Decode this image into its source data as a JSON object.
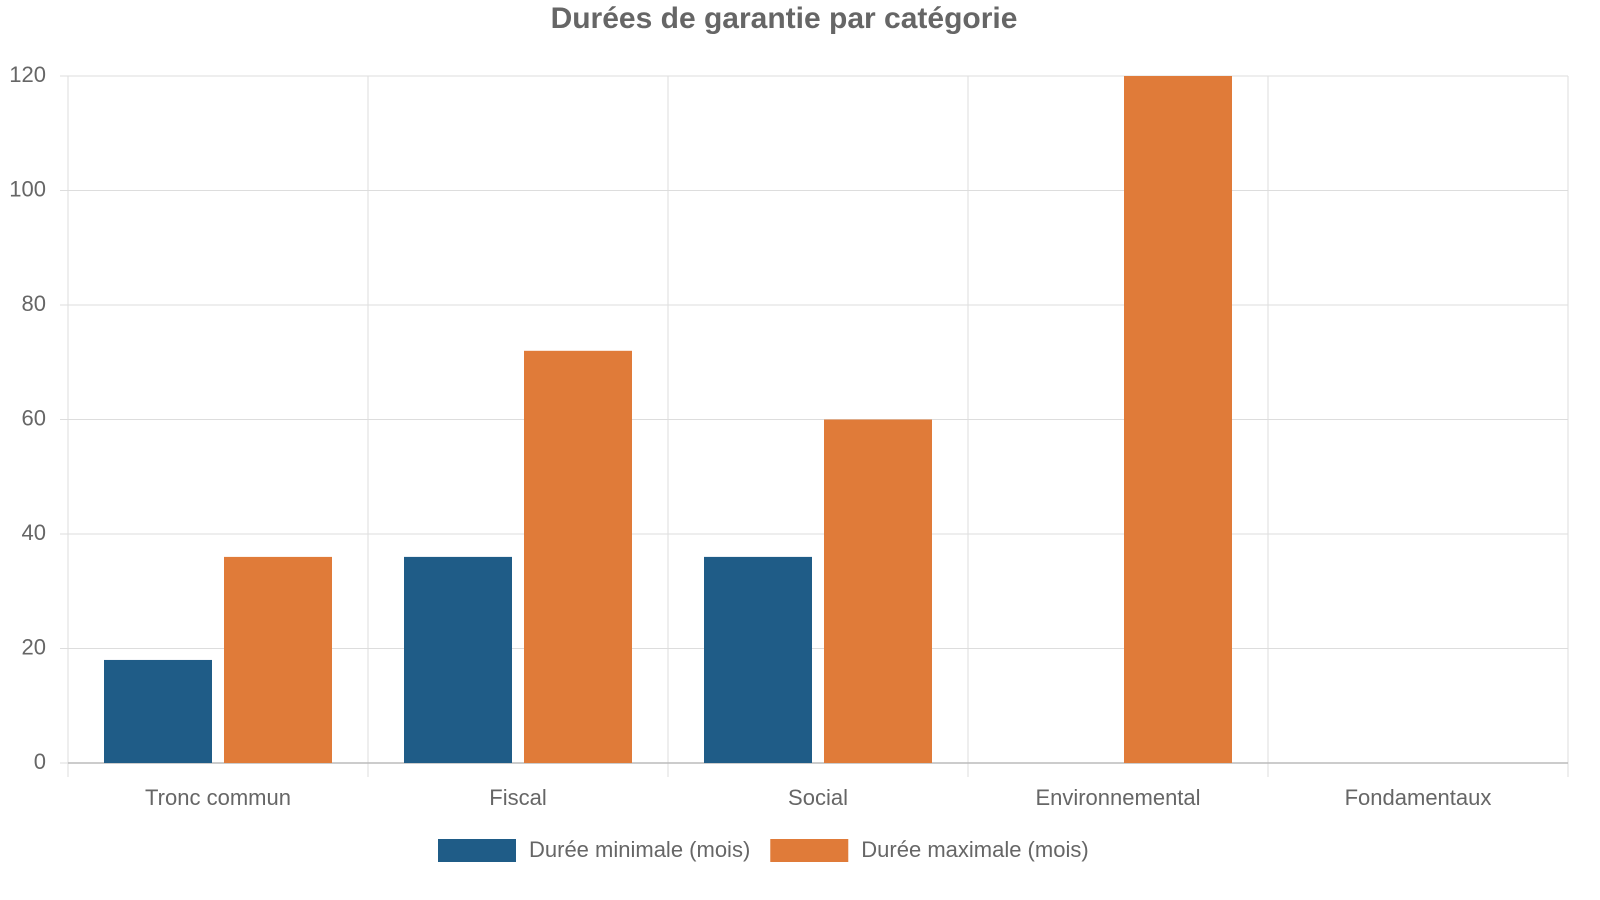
{
  "chart_data": {
    "type": "bar",
    "title": "Durées de garantie par catégorie",
    "categories": [
      "Tronc commun",
      "Fiscal",
      "Social",
      "Environnemental",
      "Fondamentaux"
    ],
    "series": [
      {
        "name": "Durée minimale (mois)",
        "color": "#1f5c87",
        "values": [
          18,
          36,
          36,
          null,
          null
        ]
      },
      {
        "name": "Durée maximale (mois)",
        "color": "#e07b39",
        "values": [
          36,
          72,
          60,
          120,
          null
        ]
      }
    ],
    "ylim": [
      0,
      120
    ],
    "yticks": [
      0,
      20,
      40,
      60,
      80,
      100,
      120
    ],
    "grid": true,
    "legend": "bottom"
  }
}
